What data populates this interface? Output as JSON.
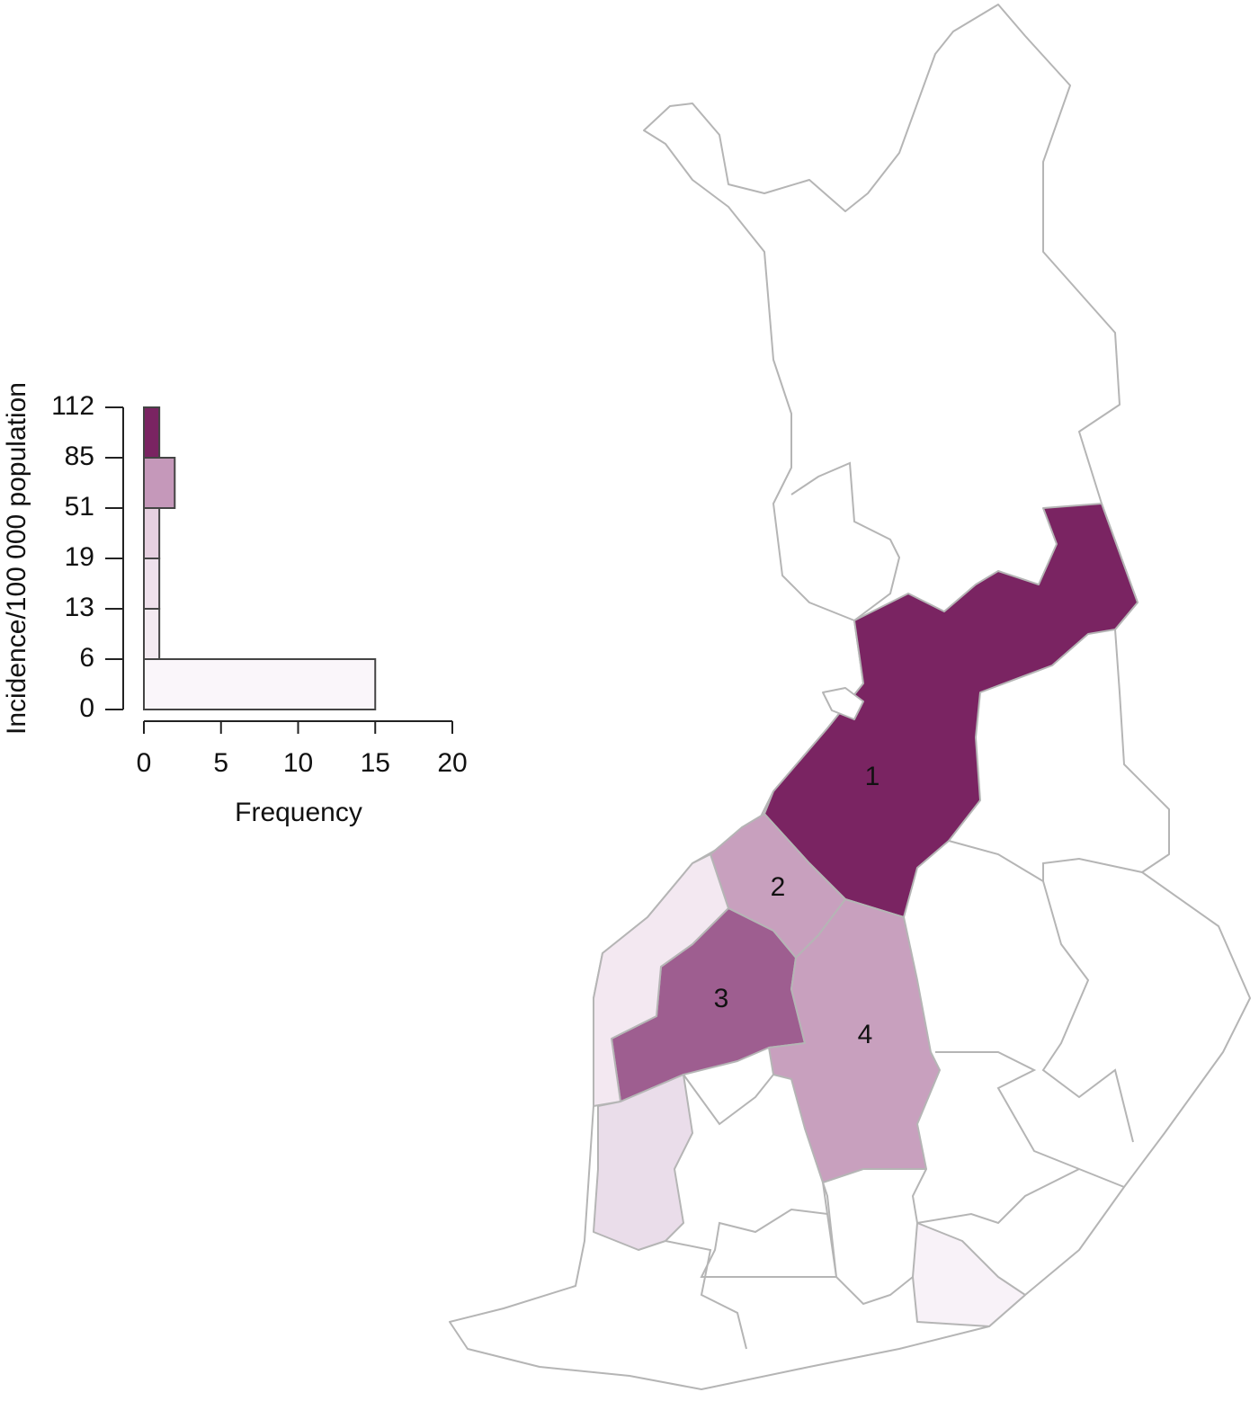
{
  "chart_data": {
    "type": "histogram",
    "orientation": "horizontal",
    "ylabel": "Incidence/100 000 population",
    "xlabel": "Frequency",
    "bins": [
      0,
      6,
      13,
      19,
      51,
      85,
      112
    ],
    "counts": [
      15,
      1,
      1,
      1,
      2,
      1
    ],
    "colors": [
      "#faf6fa",
      "#f3eaf1",
      "#efe1ec",
      "#e6d0e0",
      "#c598ba",
      "#7a2462"
    ],
    "xlim": [
      0,
      20
    ],
    "xticks": [
      0,
      5,
      10,
      15,
      20
    ]
  },
  "map": {
    "labels": [
      "1",
      "2",
      "3",
      "4"
    ]
  }
}
